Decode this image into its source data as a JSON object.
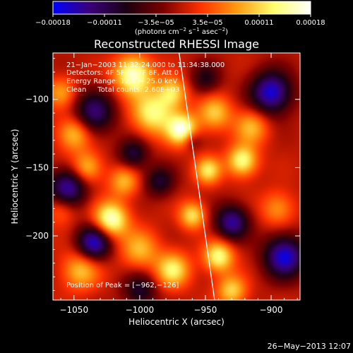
{
  "chart_data": {
    "type": "heatmap",
    "title": "Reconstructed RHESSI Image",
    "xlabel": "Heliocentric X (arcsec)",
    "ylabel": "Heliocentric Y (arcsec)",
    "xlim": [
      -1066,
      -878
    ],
    "ylim": [
      -247,
      -66
    ],
    "x_ticks": [
      -1050,
      -1000,
      -950,
      -900
    ],
    "x_tick_labels": [
      "−1050",
      "−1000",
      "−950",
      "−900"
    ],
    "y_ticks": [
      -100,
      -150,
      -200
    ],
    "y_tick_labels": [
      "−100",
      "−150",
      "−200"
    ],
    "colorbar": {
      "range": [
        -0.00018,
        0.00018
      ],
      "tick_labels": [
        "−0.00018",
        "−0.00011",
        "−3.5e−05",
        "3.5e−05",
        "0.00011",
        "0.00018"
      ],
      "unit_main": "(photons cm",
      "unit_exp1": "−2",
      "unit_mid": " s",
      "unit_exp2": "−1",
      "unit_end": " asec",
      "unit_exp3": "−2",
      "unit_close": ")",
      "colormap": [
        "#0000ff",
        "#3a0078",
        "#1a0010",
        "#7a0000",
        "#ff3000",
        "#ff9a10",
        "#ffff70",
        "#ffffff"
      ]
    },
    "annotations": [
      "21−Jan−2003 11:32:24.000 to 11:34:38.000",
      "Detectors: 4F 5F 6F 7F 8F, Att 0",
      "Energy Range: 12.0 − 25.0 keV",
      "Clean     Total counts: 2.60E+03"
    ],
    "peak_label": "Position of Peak = [−962,−126]",
    "peak": [
      -962,
      -126
    ],
    "limb_line": [
      [
        -970,
        -66
      ],
      [
        -943,
        -247
      ]
    ],
    "sources": [
      {
        "x": -1005,
        "y": -82,
        "v": 1.0,
        "s": 10
      },
      {
        "x": -968,
        "y": -122,
        "v": 1.0,
        "s": 8
      },
      {
        "x": -990,
        "y": -110,
        "v": 0.8,
        "s": 11
      },
      {
        "x": -975,
        "y": -95,
        "v": 0.65,
        "s": 8
      },
      {
        "x": -943,
        "y": -110,
        "v": 0.6,
        "s": 9
      },
      {
        "x": -915,
        "y": -120,
        "v": 0.55,
        "s": 9
      },
      {
        "x": -922,
        "y": -145,
        "v": 0.85,
        "s": 8
      },
      {
        "x": -948,
        "y": -152,
        "v": 0.7,
        "s": 7
      },
      {
        "x": -1050,
        "y": -125,
        "v": 0.65,
        "s": 9
      },
      {
        "x": -1040,
        "y": -150,
        "v": 0.6,
        "s": 8
      },
      {
        "x": -1012,
        "y": -160,
        "v": 0.55,
        "s": 8
      },
      {
        "x": -1022,
        "y": -188,
        "v": 1.0,
        "s": 9
      },
      {
        "x": -960,
        "y": -185,
        "v": 0.7,
        "s": 7
      },
      {
        "x": -1000,
        "y": -210,
        "v": 0.55,
        "s": 10
      },
      {
        "x": -1045,
        "y": -225,
        "v": 0.6,
        "s": 10
      },
      {
        "x": -975,
        "y": -225,
        "v": 0.75,
        "s": 9
      },
      {
        "x": -940,
        "y": -215,
        "v": 0.85,
        "s": 8
      },
      {
        "x": -930,
        "y": -240,
        "v": 0.65,
        "s": 8
      },
      {
        "x": -895,
        "y": -180,
        "v": 0.45,
        "s": 9
      },
      {
        "x": -1060,
        "y": -95,
        "v": 0.45,
        "s": 8
      },
      {
        "x": -1060,
        "y": -180,
        "v": 0.4,
        "s": 8
      },
      {
        "x": -1035,
        "y": -110,
        "v": -0.75,
        "s": 11
      },
      {
        "x": -1055,
        "y": -165,
        "v": -0.9,
        "s": 10
      },
      {
        "x": -1035,
        "y": -205,
        "v": -1.0,
        "s": 9
      },
      {
        "x": -900,
        "y": -95,
        "v": -1.0,
        "s": 11
      },
      {
        "x": -890,
        "y": -215,
        "v": -1.0,
        "s": 11
      },
      {
        "x": -930,
        "y": -190,
        "v": -0.85,
        "s": 9
      },
      {
        "x": -1005,
        "y": -140,
        "v": -0.6,
        "s": 8
      },
      {
        "x": -985,
        "y": -160,
        "v": -0.55,
        "s": 8
      },
      {
        "x": -1000,
        "y": -240,
        "v": -0.55,
        "s": 9
      },
      {
        "x": -950,
        "y": -85,
        "v": -0.45,
        "s": 8
      },
      {
        "x": -960,
        "y": -130,
        "v": -0.35,
        "s": 5
      }
    ]
  },
  "footer": {
    "timestamp": "26−May−2013 12:07"
  }
}
